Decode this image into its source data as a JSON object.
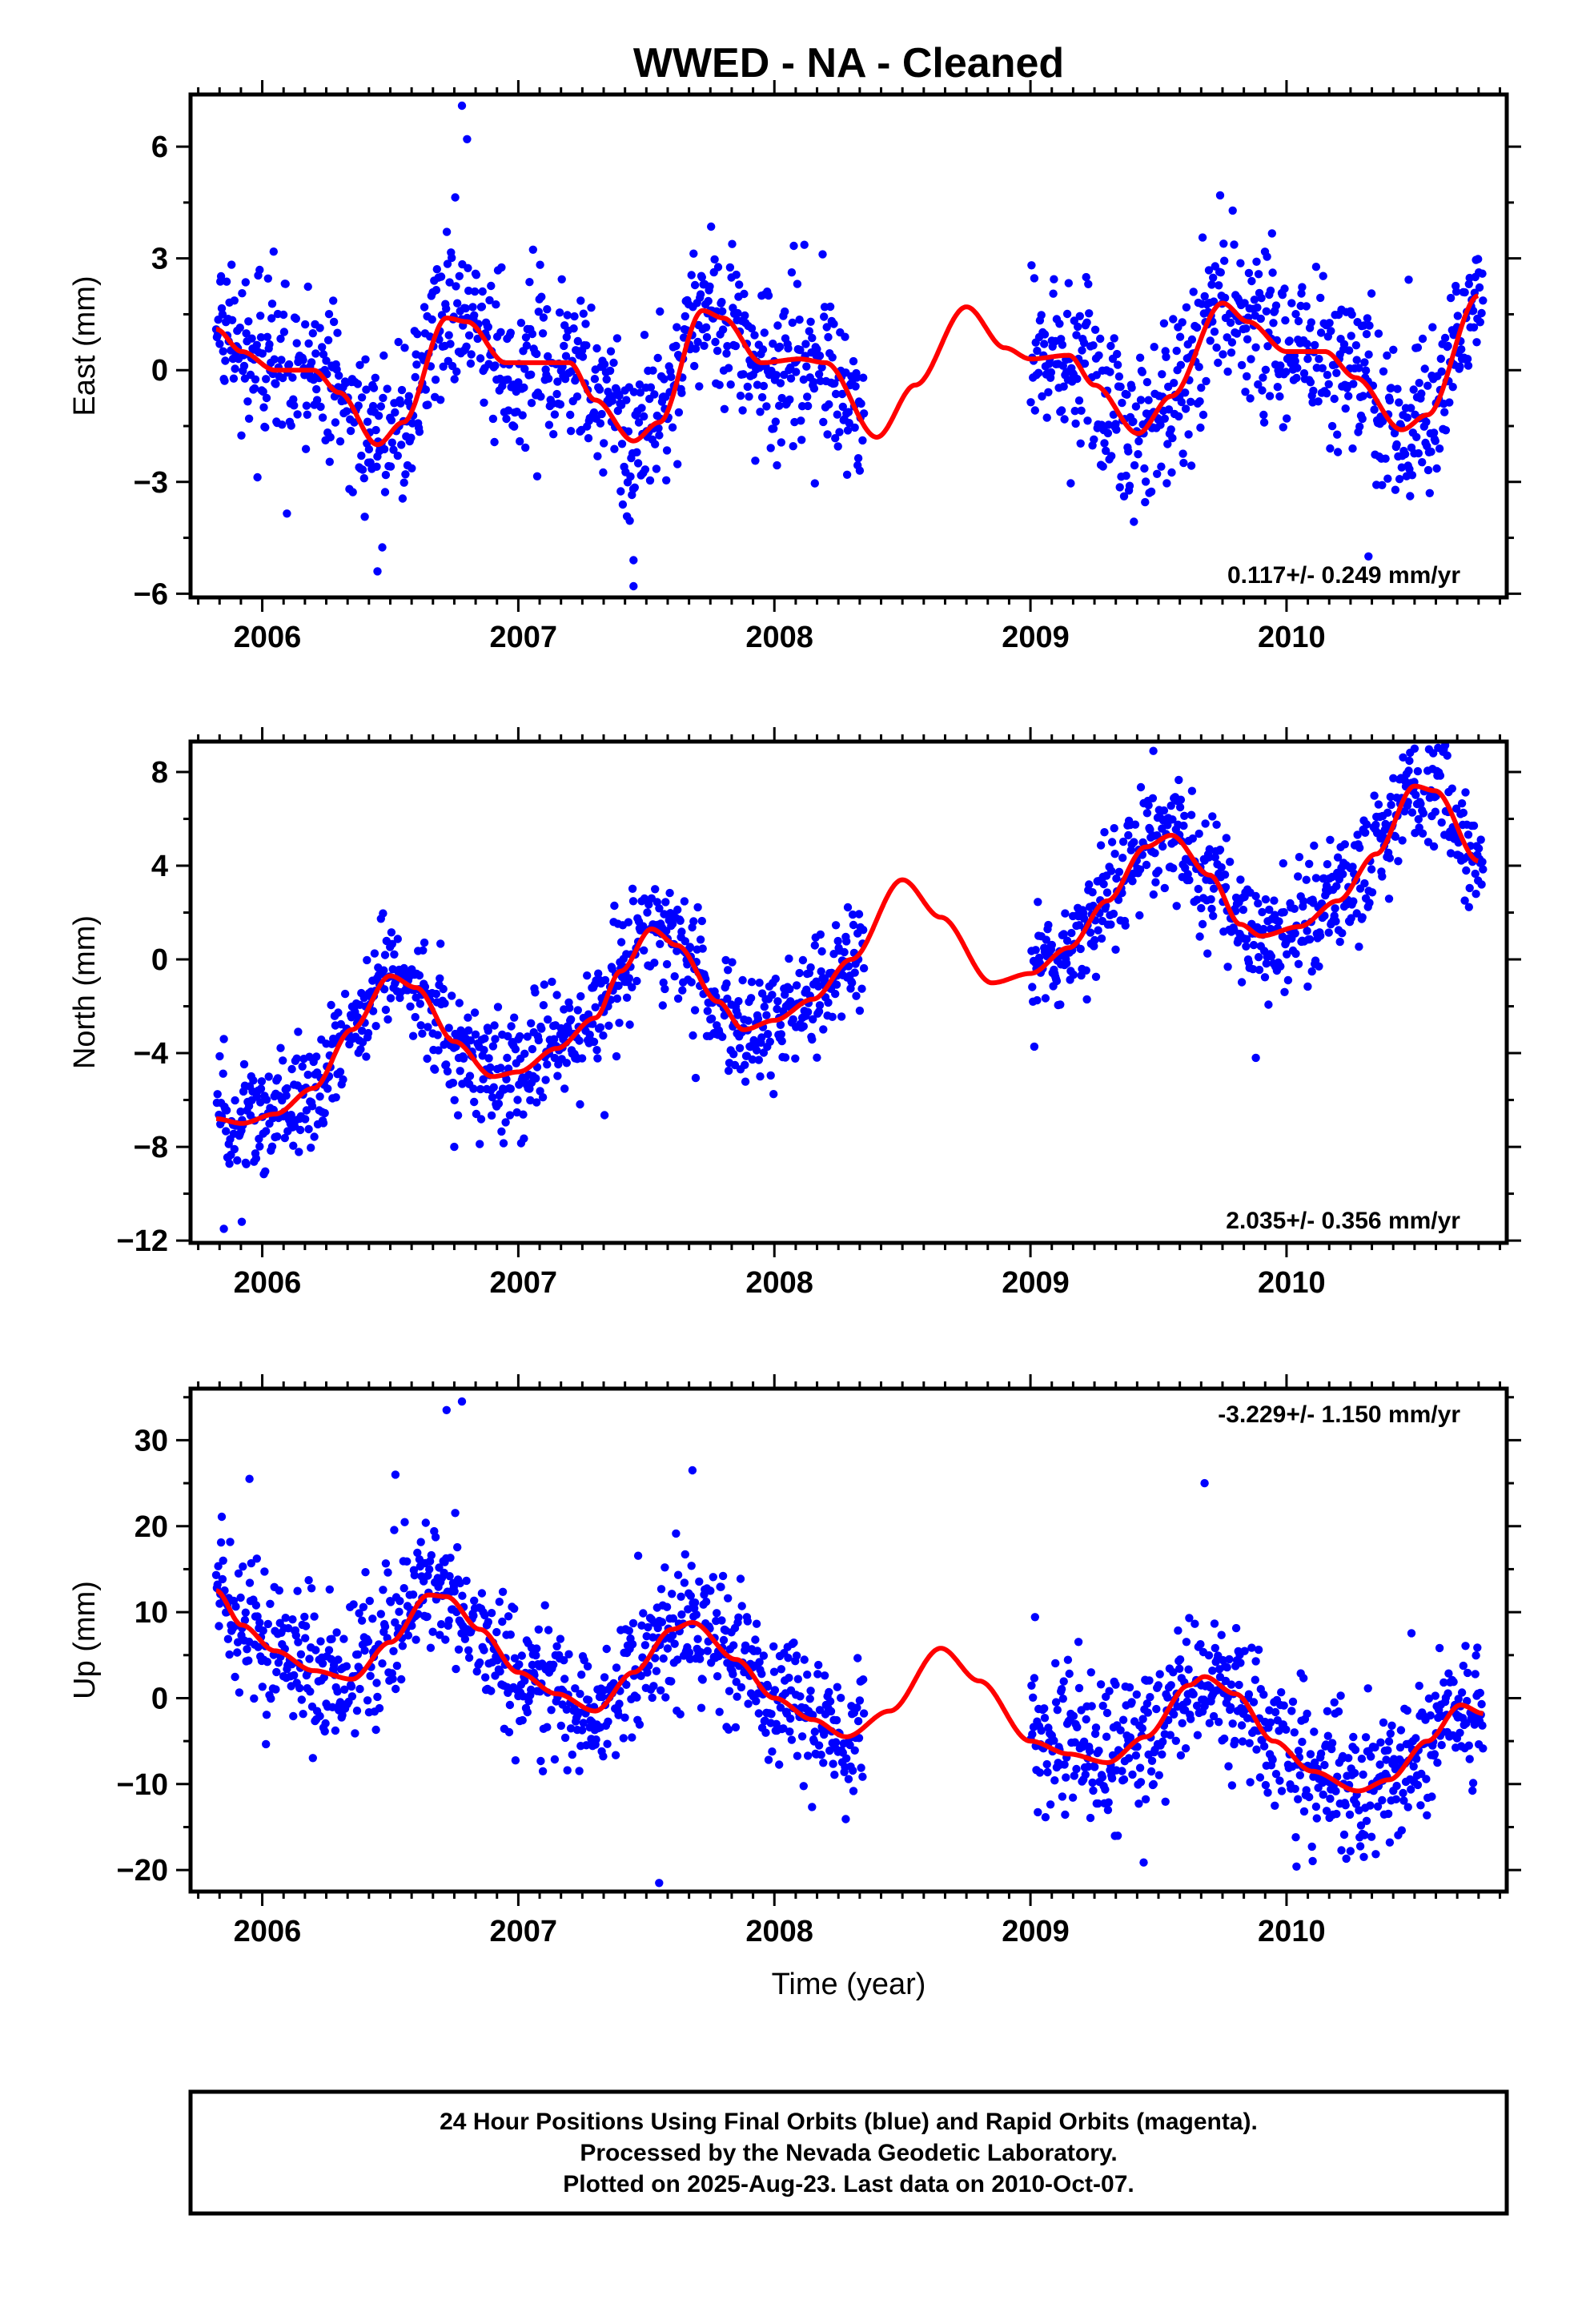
{
  "page_title": "WWED  - NA - Cleaned",
  "xlabel": "Time (year)",
  "footer": {
    "line1": "24 Hour Positions Using Final Orbits (blue) and Rapid Orbits (magenta).",
    "line2": "Processed by the Nevada Geodetic Laboratory.",
    "line3": "Plotted on 2025-Aug-23. Last data on 2010-Oct-07."
  },
  "colors": {
    "points": "#0000ff",
    "fit": "#ff0000",
    "frame": "#000000"
  },
  "chart_data": [
    {
      "type": "scatter",
      "title": "WWED  - NA - Cleaned",
      "ylabel": "East (mm)",
      "xlabel": "",
      "rate_label": "0.117+/- 0.249 mm/yr",
      "xlim": [
        2005.72,
        2010.86
      ],
      "ylim": [
        -6.1,
        7.4
      ],
      "yticks": [
        6,
        3,
        0,
        -3,
        -6
      ],
      "xticks": [
        2006,
        2007,
        2008,
        2009,
        2010
      ],
      "data_gap": [
        2008.35,
        2009.0
      ],
      "data_range": [
        2005.82,
        2010.77
      ],
      "noise_sd": 1.1,
      "outliers": [
        [
          2006.45,
          -5.4
        ],
        [
          2007.45,
          -5.8
        ],
        [
          2006.78,
          7.1
        ],
        [
          2006.8,
          6.2
        ],
        [
          2007.45,
          -5.1
        ],
        [
          2010.32,
          -5.0
        ]
      ],
      "fit_curve": [
        [
          2005.82,
          1.1
        ],
        [
          2005.92,
          0.5
        ],
        [
          2006.05,
          0.0
        ],
        [
          2006.2,
          0.0
        ],
        [
          2006.3,
          -0.6
        ],
        [
          2006.45,
          -2.0
        ],
        [
          2006.55,
          -1.4
        ],
        [
          2006.72,
          1.4
        ],
        [
          2006.8,
          1.3
        ],
        [
          2006.95,
          0.2
        ],
        [
          2007.05,
          0.2
        ],
        [
          2007.2,
          0.2
        ],
        [
          2007.3,
          -0.8
        ],
        [
          2007.45,
          -1.9
        ],
        [
          2007.55,
          -1.4
        ],
        [
          2007.72,
          1.6
        ],
        [
          2007.8,
          1.4
        ],
        [
          2007.95,
          0.2
        ],
        [
          2008.1,
          0.3
        ],
        [
          2008.2,
          0.2
        ],
        [
          2008.4,
          -1.8
        ],
        [
          2008.55,
          -0.4
        ],
        [
          2008.75,
          1.7
        ],
        [
          2008.9,
          0.6
        ],
        [
          2009.0,
          0.3
        ],
        [
          2009.15,
          0.4
        ],
        [
          2009.25,
          -0.4
        ],
        [
          2009.42,
          -1.7
        ],
        [
          2009.55,
          -0.7
        ],
        [
          2009.75,
          1.8
        ],
        [
          2009.85,
          1.3
        ],
        [
          2010.0,
          0.5
        ],
        [
          2010.15,
          0.5
        ],
        [
          2010.27,
          -0.2
        ],
        [
          2010.45,
          -1.6
        ],
        [
          2010.55,
          -1.2
        ],
        [
          2010.75,
          2.0
        ]
      ]
    },
    {
      "type": "scatter",
      "title": "",
      "ylabel": "North (mm)",
      "xlabel": "",
      "rate_label": "2.035+/- 0.356 mm/yr",
      "xlim": [
        2005.72,
        2010.86
      ],
      "ylim": [
        -12.1,
        9.3
      ],
      "yticks": [
        8,
        4,
        0,
        -4,
        -8,
        -12
      ],
      "xticks": [
        2006,
        2007,
        2008,
        2009,
        2010
      ],
      "data_gap": [
        2008.35,
        2009.0
      ],
      "data_range": [
        2005.82,
        2010.77
      ],
      "noise_sd": 1.2,
      "outliers": [
        [
          2005.85,
          -11.5
        ],
        [
          2005.92,
          -11.2
        ],
        [
          2006.75,
          -8.0
        ],
        [
          2009.88,
          -4.2
        ],
        [
          2009.48,
          8.9
        ],
        [
          2010.5,
          9.0
        ]
      ],
      "fit_curve": [
        [
          2005.82,
          -6.8
        ],
        [
          2005.92,
          -7.0
        ],
        [
          2006.05,
          -6.6
        ],
        [
          2006.2,
          -5.5
        ],
        [
          2006.35,
          -3.0
        ],
        [
          2006.5,
          -0.7
        ],
        [
          2006.6,
          -1.2
        ],
        [
          2006.75,
          -3.5
        ],
        [
          2006.9,
          -5.0
        ],
        [
          2007.0,
          -4.8
        ],
        [
          2007.15,
          -3.8
        ],
        [
          2007.3,
          -2.5
        ],
        [
          2007.4,
          -0.5
        ],
        [
          2007.52,
          1.3
        ],
        [
          2007.62,
          0.6
        ],
        [
          2007.78,
          -1.8
        ],
        [
          2007.88,
          -3.0
        ],
        [
          2008.0,
          -2.6
        ],
        [
          2008.15,
          -1.7
        ],
        [
          2008.3,
          0.0
        ],
        [
          2008.5,
          3.4
        ],
        [
          2008.65,
          1.8
        ],
        [
          2008.85,
          -1.0
        ],
        [
          2009.0,
          -0.6
        ],
        [
          2009.15,
          0.5
        ],
        [
          2009.3,
          2.5
        ],
        [
          2009.45,
          4.8
        ],
        [
          2009.55,
          5.3
        ],
        [
          2009.7,
          3.6
        ],
        [
          2009.82,
          1.5
        ],
        [
          2009.9,
          1.0
        ],
        [
          2010.05,
          1.4
        ],
        [
          2010.2,
          2.5
        ],
        [
          2010.35,
          4.5
        ],
        [
          2010.5,
          7.4
        ],
        [
          2010.58,
          7.2
        ],
        [
          2010.75,
          4.2
        ]
      ]
    },
    {
      "type": "scatter",
      "title": "",
      "ylabel": "Up (mm)",
      "xlabel": "Time (year)",
      "rate_label": "-3.229+/- 1.150 mm/yr",
      "xlim": [
        2005.72,
        2010.86
      ],
      "ylim": [
        -22.5,
        36
      ],
      "yticks": [
        30,
        20,
        10,
        0,
        -10,
        -20
      ],
      "xticks": [
        2006,
        2007,
        2008,
        2009,
        2010
      ],
      "data_gap": [
        2008.35,
        2009.0
      ],
      "data_range": [
        2005.82,
        2010.77
      ],
      "noise_sd": 4.2,
      "outliers": [
        [
          2006.72,
          33.5
        ],
        [
          2006.78,
          34.5
        ],
        [
          2006.52,
          26.0
        ],
        [
          2007.55,
          -21.5
        ],
        [
          2007.68,
          26.5
        ],
        [
          2009.68,
          25.0
        ],
        [
          2005.95,
          25.5
        ]
      ],
      "fit_curve": [
        [
          2005.82,
          12.5
        ],
        [
          2005.92,
          8.5
        ],
        [
          2006.05,
          5.5
        ],
        [
          2006.2,
          3.2
        ],
        [
          2006.35,
          2.2
        ],
        [
          2006.5,
          6.5
        ],
        [
          2006.65,
          12.0
        ],
        [
          2006.72,
          11.8
        ],
        [
          2006.85,
          8.0
        ],
        [
          2007.0,
          3.0
        ],
        [
          2007.15,
          0.5
        ],
        [
          2007.3,
          -1.5
        ],
        [
          2007.45,
          3.0
        ],
        [
          2007.6,
          8.0
        ],
        [
          2007.68,
          8.8
        ],
        [
          2007.85,
          4.5
        ],
        [
          2008.0,
          0.0
        ],
        [
          2008.15,
          -2.5
        ],
        [
          2008.28,
          -4.5
        ],
        [
          2008.45,
          -1.5
        ],
        [
          2008.65,
          5.8
        ],
        [
          2008.8,
          2.0
        ],
        [
          2009.0,
          -5.0
        ],
        [
          2009.15,
          -6.5
        ],
        [
          2009.3,
          -7.5
        ],
        [
          2009.45,
          -4.5
        ],
        [
          2009.62,
          1.5
        ],
        [
          2009.68,
          2.5
        ],
        [
          2009.8,
          0.5
        ],
        [
          2009.95,
          -5.0
        ],
        [
          2010.1,
          -8.5
        ],
        [
          2010.28,
          -10.8
        ],
        [
          2010.4,
          -9.5
        ],
        [
          2010.55,
          -5.0
        ],
        [
          2010.68,
          -0.8
        ],
        [
          2010.77,
          -1.8
        ]
      ]
    }
  ]
}
